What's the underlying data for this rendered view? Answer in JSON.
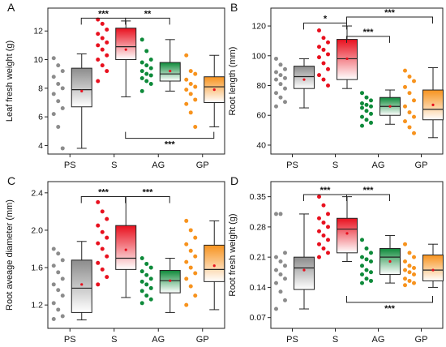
{
  "chart_data": [
    {
      "panel": "A",
      "type": "box",
      "ylabel": "Leaf fresh weight (g)",
      "ylim": [
        3.4,
        13.6
      ],
      "yticks": [
        4,
        6,
        8,
        10,
        12
      ],
      "tick_labels": [
        "4",
        "6",
        "8",
        "10",
        "12"
      ],
      "categories": [
        "PS",
        "S",
        "AG",
        "GP"
      ],
      "boxes": [
        {
          "group": "PS",
          "whisker_low": 3.8,
          "q1": 6.7,
          "median": 7.9,
          "q3": 9.4,
          "whisker_high": 10.4,
          "mean": 7.8,
          "color": "#8c8c8c",
          "points": [
            10.1,
            9.6,
            9.2,
            8.8,
            8.3,
            8.0,
            7.6,
            7.1,
            6.6,
            6.2,
            5.3,
            3.8
          ]
        },
        {
          "group": "S",
          "whisker_low": 7.4,
          "q1": 10.0,
          "median": 10.9,
          "q3": 12.2,
          "whisker_high": 12.7,
          "mean": 10.7,
          "color": "#e8101e",
          "points": [
            12.8,
            12.5,
            12.1,
            11.8,
            11.5,
            11.2,
            11.0,
            10.7,
            10.3,
            10.0,
            9.6,
            9.2,
            8.5
          ]
        },
        {
          "group": "AG",
          "whisker_low": 7.8,
          "q1": 8.5,
          "median": 9.0,
          "q3": 9.8,
          "whisker_high": 11.4,
          "mean": 9.2,
          "color": "#0e8a3a",
          "points": [
            11.4,
            10.6,
            10.0,
            9.8,
            9.6,
            9.4,
            9.2,
            9.0,
            8.9,
            8.7,
            8.5,
            8.3,
            7.8
          ]
        },
        {
          "group": "GP",
          "whisker_low": 5.3,
          "q1": 7.0,
          "median": 8.1,
          "q3": 8.8,
          "whisker_high": 10.3,
          "mean": 7.9,
          "color": "#f7931e",
          "points": [
            10.3,
            9.2,
            9.0,
            8.6,
            8.3,
            8.1,
            7.9,
            7.6,
            7.2,
            6.9,
            6.3,
            5.3
          ]
        }
      ],
      "significance": [
        {
          "from": "PS",
          "to": "S",
          "label": "***",
          "y": 12.9,
          "below": false
        },
        {
          "from": "S",
          "to": "AG",
          "label": "**",
          "y": 12.9,
          "below": false
        },
        {
          "from": "S",
          "to": "GP",
          "label": "***",
          "y": 4.5,
          "below": true
        }
      ]
    },
    {
      "panel": "B",
      "type": "box",
      "ylabel": "Root length (mm)",
      "ylim": [
        34,
        132
      ],
      "yticks": [
        40,
        60,
        80,
        100,
        120
      ],
      "tick_labels": [
        "40",
        "60",
        "80",
        "100",
        "120"
      ],
      "categories": [
        "PS",
        "S",
        "AG",
        "GP"
      ],
      "boxes": [
        {
          "group": "PS",
          "whisker_low": 65,
          "q1": 78,
          "median": 86,
          "q3": 93,
          "whisker_high": 98,
          "mean": 84,
          "color": "#8c8c8c",
          "points": [
            98,
            94,
            91,
            89,
            87,
            85,
            84,
            81,
            78,
            75,
            72,
            69,
            66
          ]
        },
        {
          "group": "S",
          "whisker_low": 78,
          "q1": 84,
          "median": 98,
          "q3": 111,
          "whisker_high": 120,
          "mean": 98,
          "color": "#e8101e",
          "points": [
            117,
            112,
            109,
            106,
            104,
            101,
            99,
            95,
            91,
            87,
            84,
            80
          ]
        },
        {
          "group": "AG",
          "whisker_low": 54,
          "q1": 60,
          "median": 66,
          "q3": 72,
          "whisker_high": 77,
          "mean": 66,
          "color": "#0e8a3a",
          "points": [
            75,
            72,
            70,
            68,
            67,
            66,
            65,
            63,
            61,
            59,
            57,
            55,
            53
          ]
        },
        {
          "group": "GP",
          "whisker_low": 45,
          "q1": 57,
          "median": 64,
          "q3": 77,
          "whisker_high": 92,
          "mean": 67,
          "color": "#f7931e",
          "points": [
            90,
            86,
            83,
            79,
            75,
            70,
            66,
            62,
            59,
            56,
            52,
            48
          ]
        }
      ],
      "significance": [
        {
          "from": "PS",
          "to": "S",
          "label": "*",
          "y": 122,
          "below": false
        },
        {
          "from": "S",
          "to": "AG",
          "label": "***",
          "y": 113,
          "below": false
        },
        {
          "from": "S",
          "to": "GP",
          "label": "***",
          "y": 126,
          "below": false
        }
      ]
    },
    {
      "panel": "C",
      "type": "box",
      "ylabel": "Root aveage diameter (mm)",
      "ylim": [
        0.95,
        2.52
      ],
      "yticks": [
        1.2,
        1.6,
        2.0,
        2.4
      ],
      "tick_labels": [
        "1.2",
        "1.6",
        "2.0",
        "2.4"
      ],
      "categories": [
        "PS",
        "S",
        "AG",
        "GP"
      ],
      "boxes": [
        {
          "group": "PS",
          "whisker_low": 1.04,
          "q1": 1.12,
          "median": 1.38,
          "q3": 1.68,
          "whisker_high": 1.88,
          "mean": 1.42,
          "color": "#8c8c8c",
          "points": [
            1.8,
            1.75,
            1.68,
            1.62,
            1.55,
            1.48,
            1.42,
            1.36,
            1.3,
            1.22,
            1.15,
            1.08,
            1.05
          ]
        },
        {
          "group": "S",
          "whisker_low": 1.28,
          "q1": 1.58,
          "median": 1.7,
          "q3": 2.05,
          "whisker_high": 2.36,
          "mean": 1.79,
          "color": "#e8101e",
          "points": [
            2.3,
            2.2,
            2.12,
            2.05,
            1.98,
            1.92,
            1.86,
            1.8,
            1.72,
            1.65,
            1.58,
            1.5,
            1.42
          ]
        },
        {
          "group": "AG",
          "whisker_low": 1.12,
          "q1": 1.33,
          "median": 1.46,
          "q3": 1.57,
          "whisker_high": 1.7,
          "mean": 1.46,
          "color": "#0e8a3a",
          "points": [
            1.7,
            1.64,
            1.6,
            1.56,
            1.52,
            1.48,
            1.45,
            1.42,
            1.38,
            1.35,
            1.3,
            1.26,
            1.22
          ]
        },
        {
          "group": "GP",
          "whisker_low": 1.15,
          "q1": 1.45,
          "median": 1.58,
          "q3": 1.84,
          "whisker_high": 2.1,
          "mean": 1.62,
          "color": "#f7931e",
          "points": [
            2.1,
            2.0,
            1.92,
            1.85,
            1.78,
            1.72,
            1.66,
            1.6,
            1.54,
            1.48,
            1.4,
            1.3,
            1.2
          ]
        }
      ],
      "significance": [
        {
          "from": "PS",
          "to": "S",
          "label": "***",
          "y": 2.36,
          "below": false
        },
        {
          "from": "S",
          "to": "AG",
          "label": "***",
          "y": 2.36,
          "below": false
        }
      ]
    },
    {
      "panel": "D",
      "type": "box",
      "ylabel": "Root fresh weight (g)",
      "ylim": [
        0.045,
        0.385
      ],
      "yticks": [
        0.07,
        0.14,
        0.21,
        0.28,
        0.35
      ],
      "tick_labels": [
        "0.07",
        "0.14",
        "0.21",
        "0.28",
        "0.35"
      ],
      "categories": [
        "PS",
        "S",
        "AG",
        "GP"
      ],
      "boxes": [
        {
          "group": "PS",
          "whisker_low": 0.09,
          "q1": 0.135,
          "median": 0.185,
          "q3": 0.21,
          "whisker_high": 0.31,
          "mean": 0.18,
          "color": "#8c8c8c",
          "points": [
            0.31,
            0.31,
            0.22,
            0.21,
            0.2,
            0.19,
            0.18,
            0.17,
            0.16,
            0.15,
            0.13,
            0.11,
            0.09
          ]
        },
        {
          "group": "S",
          "whisker_low": 0.2,
          "q1": 0.22,
          "median": 0.275,
          "q3": 0.3,
          "whisker_high": 0.35,
          "mean": 0.265,
          "color": "#e8101e",
          "points": [
            0.35,
            0.33,
            0.31,
            0.3,
            0.29,
            0.28,
            0.27,
            0.26,
            0.25,
            0.24,
            0.23,
            0.22,
            0.21
          ]
        },
        {
          "group": "AG",
          "whisker_low": 0.15,
          "q1": 0.17,
          "median": 0.21,
          "q3": 0.23,
          "whisker_high": 0.26,
          "mean": 0.2,
          "color": "#0e8a3a",
          "points": [
            0.25,
            0.23,
            0.22,
            0.21,
            0.205,
            0.2,
            0.19,
            0.18,
            0.175,
            0.17,
            0.16,
            0.155,
            0.15
          ]
        },
        {
          "group": "GP",
          "whisker_low": 0.14,
          "q1": 0.155,
          "median": 0.18,
          "q3": 0.215,
          "whisker_high": 0.24,
          "mean": 0.18,
          "color": "#f7931e",
          "points": [
            0.24,
            0.22,
            0.21,
            0.2,
            0.19,
            0.185,
            0.18,
            0.175,
            0.17,
            0.16,
            0.155,
            0.15,
            0.145
          ]
        }
      ],
      "significance": [
        {
          "from": "PS",
          "to": "S",
          "label": "***",
          "y": 0.355,
          "below": false
        },
        {
          "from": "S",
          "to": "AG",
          "label": "***",
          "y": 0.355,
          "below": false
        },
        {
          "from": "S",
          "to": "GP",
          "label": "***",
          "y": 0.105,
          "below": true
        }
      ]
    }
  ]
}
